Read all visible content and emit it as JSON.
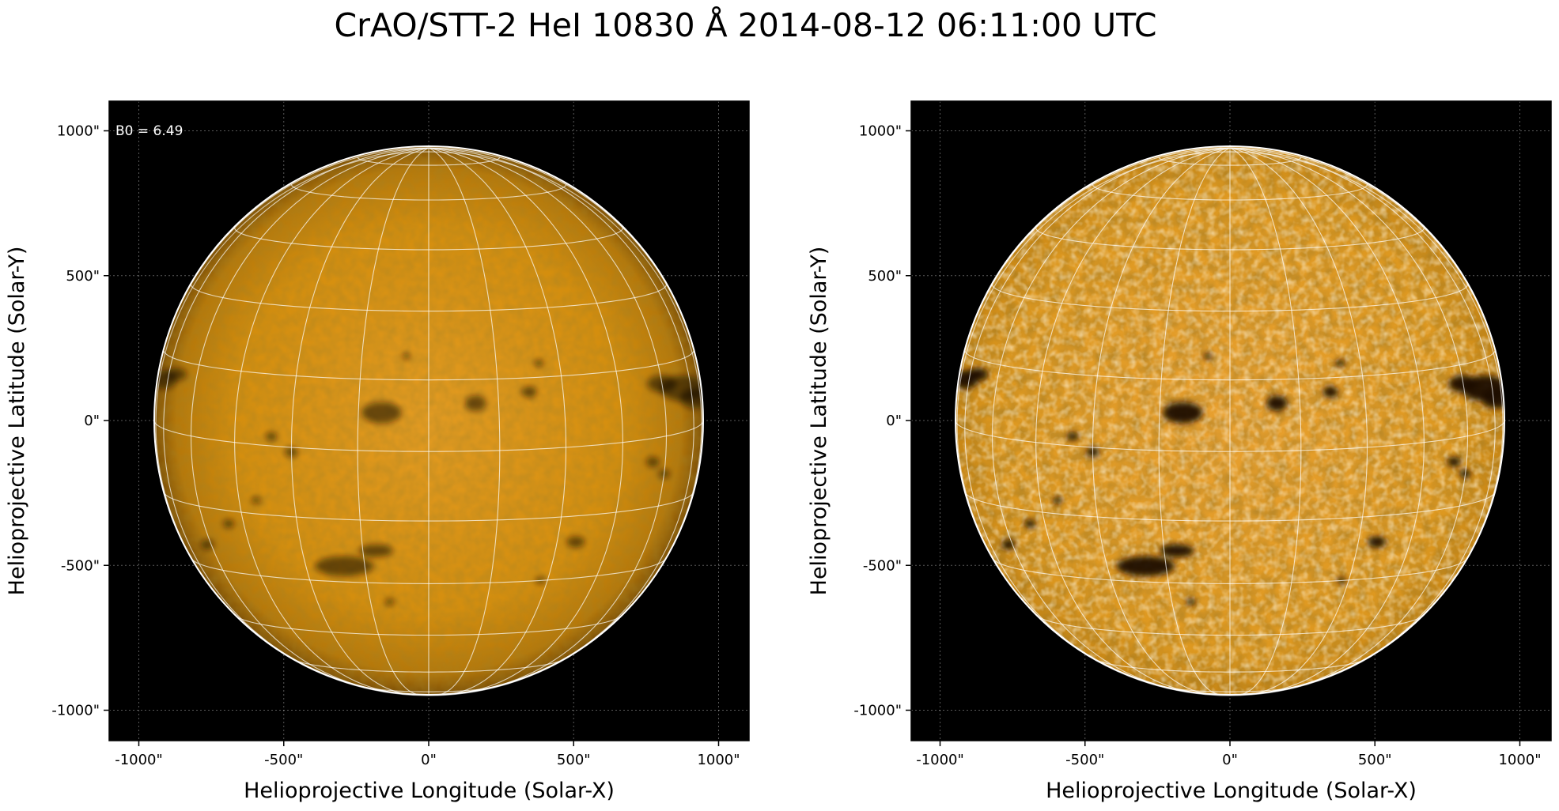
{
  "figure": {
    "title": "CrAO/STT-2 HeI 10830 Å 2014-08-12 06:11:00 UTC"
  },
  "panels": [
    {
      "xlabel": "Helioprojective Longitude (Solar-X)",
      "ylabel": "Helioprojective Latitude (Solar-Y)",
      "xticks": [
        "-1000\"",
        "-500\"",
        "0\"",
        "500\"",
        "1000\""
      ],
      "yticks": [
        "1000\"",
        "500\"",
        "0\"",
        "-500\"",
        "-1000\""
      ],
      "annotation": "B0 = 6.49",
      "contrast": "normal"
    },
    {
      "xlabel": "Helioprojective Longitude (Solar-X)",
      "ylabel": "Helioprojective Latitude (Solar-Y)",
      "xticks": [
        "-1000\"",
        "-500\"",
        "0\"",
        "500\"",
        "1000\""
      ],
      "yticks": [
        "1000\"",
        "500\"",
        "0\"",
        "-500\"",
        "-1000\""
      ],
      "annotation": "",
      "contrast": "enhanced"
    }
  ],
  "colors": {
    "background": "#000000",
    "disk_base": "#d4900c",
    "disk_center": "#e59f2a",
    "disk_limb": "#8a5a08",
    "grid": "#ffffff",
    "dark_feature": "#1a0e02",
    "bright_feature": "#ffe6b0"
  }
}
